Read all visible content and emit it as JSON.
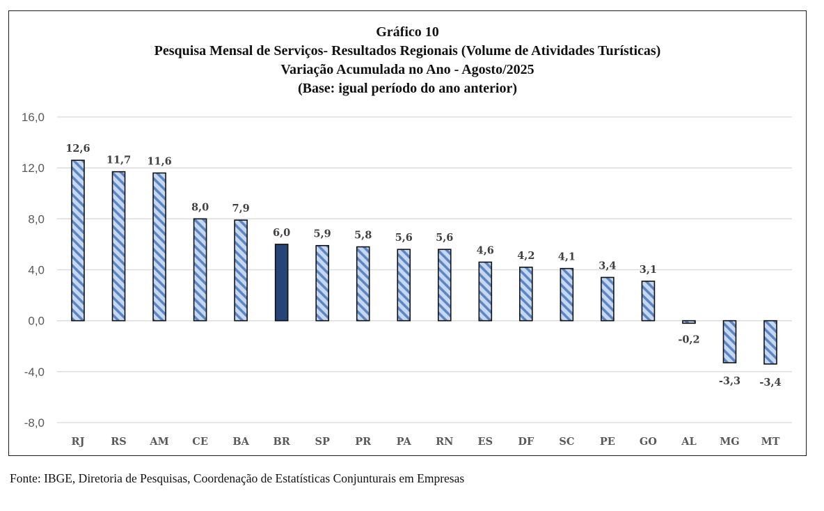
{
  "chart_data": {
    "type": "bar",
    "title": "Gráfico 10",
    "subtitle_lines": [
      "Pesquisa Mensal de Serviços- Resultados Regionais (Volume de Atividades Turísticas)",
      "Variação Acumulada no Ano - Agosto/2025",
      "(Base: igual período do ano anterior)"
    ],
    "xlabel": "",
    "ylabel": "",
    "categories": [
      "RJ",
      "RS",
      "AM",
      "CE",
      "BA",
      "BR",
      "SP",
      "PR",
      "PA",
      "RN",
      "ES",
      "DF",
      "SC",
      "PE",
      "GO",
      "AL",
      "MG",
      "MT"
    ],
    "values": [
      12.6,
      11.7,
      11.6,
      8.0,
      7.9,
      6.0,
      5.9,
      5.8,
      5.6,
      5.6,
      4.6,
      4.2,
      4.1,
      3.4,
      3.1,
      -0.2,
      -3.3,
      -3.4
    ],
    "value_labels": [
      "12,6",
      "11,7",
      "11,6",
      "8,0",
      "7,9",
      "6,0",
      "5,9",
      "5,8",
      "5,6",
      "5,6",
      "4,6",
      "4,2",
      "4,1",
      "3,4",
      "3,1",
      "-0,2",
      "-3,3",
      "-3,4"
    ],
    "highlight_category": "BR",
    "ylim": [
      -8,
      16
    ],
    "yticks": [
      16,
      12,
      8,
      4,
      0,
      -4,
      -8
    ],
    "ytick_labels": [
      "16,0",
      "12,0",
      "8,0",
      "4,0",
      "0,0",
      "-4,0",
      "-8,0"
    ],
    "grid": true,
    "legend": "none",
    "colors": {
      "bar_fill": "#c6d7ef",
      "bar_hatch": "#5b86c4",
      "bar_outline": "#111111",
      "highlight_fill": "#264478",
      "gridline": "#d9d9d9",
      "tick_text": "#595959",
      "label_text": "#404040"
    }
  },
  "source_note": "Fonte: IBGE, Diretoria de Pesquisas, Coordenação de Estatísticas Conjunturais em Empresas"
}
